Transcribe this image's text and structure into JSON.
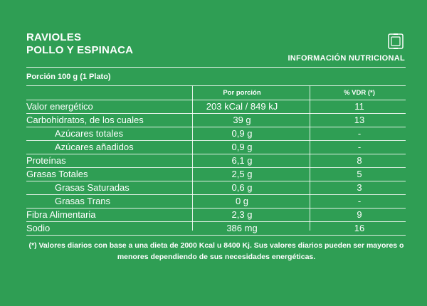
{
  "product": {
    "line1": "RAVIOLES",
    "line2": "POLLO Y ESPINACA"
  },
  "logo_icon": "square-badge-icon",
  "panel_label": "INFORMACIÓN NUTRICIONAL",
  "portion": "Porción 100 g (1 Plato)",
  "columns": {
    "per_portion": "Por porción",
    "vdr": "% VDR (*)"
  },
  "rows": [
    {
      "name": "Valor energético",
      "value": "203 kCal / 849 kJ",
      "vdr": "11",
      "sub": false
    },
    {
      "name": "Carbohidratos, de los cuales",
      "value": "39 g",
      "vdr": "13",
      "sub": false
    },
    {
      "name": "Azúcares totales",
      "value": "0,9 g",
      "vdr": "-",
      "sub": true
    },
    {
      "name": "Azúcares añadidos",
      "value": "0,9 g",
      "vdr": "-",
      "sub": true
    },
    {
      "name": "Proteínas",
      "value": "6,1 g",
      "vdr": "8",
      "sub": false
    },
    {
      "name": "Grasas Totales",
      "value": "2,5 g",
      "vdr": "5",
      "sub": false
    },
    {
      "name": "Grasas Saturadas",
      "value": "0,6 g",
      "vdr": "3",
      "sub": true
    },
    {
      "name": "Grasas Trans",
      "value": "0 g",
      "vdr": "-",
      "sub": true
    },
    {
      "name": "Fibra Alimentaria",
      "value": "2,3 g",
      "vdr": "9",
      "sub": false
    },
    {
      "name": "Sodio",
      "value": "386 mg",
      "vdr": "16",
      "sub": false
    }
  ],
  "footnote": "(*) Valores diarios con base a una dieta de 2000 Kcal u 8400 Kj. Sus valores diarios pueden ser mayores o menores dependiendo de sus necesidades energéticas.",
  "colors": {
    "background": "#2f9e54",
    "text": "#ffffff"
  }
}
